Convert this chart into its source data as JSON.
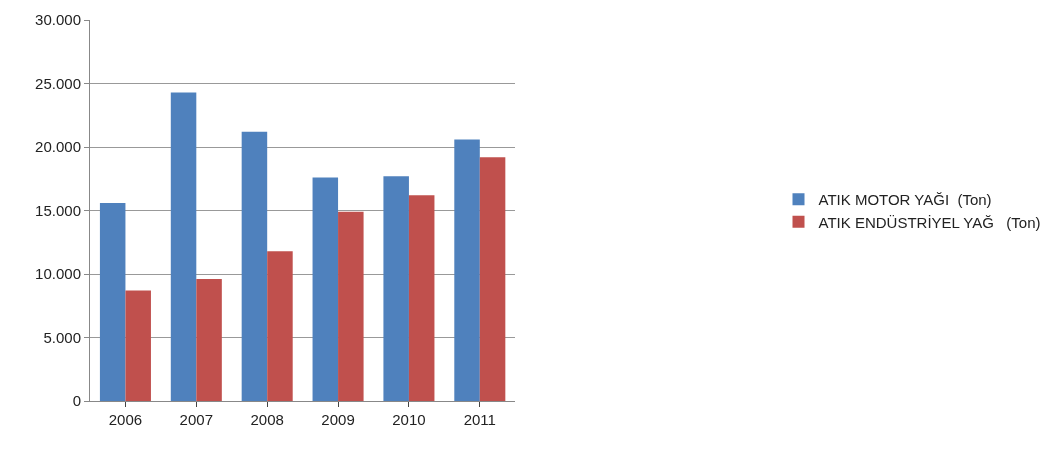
{
  "chart_data": {
    "type": "bar",
    "categories": [
      "2006",
      "2007",
      "2008",
      "2009",
      "2010",
      "2011"
    ],
    "series": [
      {
        "name": "ATIK MOTOR YAĞI  (Ton)",
        "color": "#4f81bd",
        "values": [
          15600,
          24300,
          21200,
          17600,
          17700,
          20600
        ]
      },
      {
        "name": "ATIK ENDÜSTRİYEL YAĞ   (Ton)",
        "color": "#c0504d",
        "values": [
          8700,
          9600,
          11800,
          14900,
          16200,
          19200
        ]
      }
    ],
    "ylim": [
      0,
      30000
    ],
    "yticks": [
      0,
      {
        "value": 5000,
        "label": "5.000"
      },
      {
        "value": 10000,
        "label": "10.000"
      },
      {
        "value": 15000,
        "label": "15.000"
      },
      {
        "value": 20000,
        "label": "20.000"
      },
      {
        "value": 25000,
        "label": "25.000"
      },
      {
        "value": 30000,
        "label": "30.000"
      }
    ],
    "grid": "y",
    "legend": "right"
  }
}
